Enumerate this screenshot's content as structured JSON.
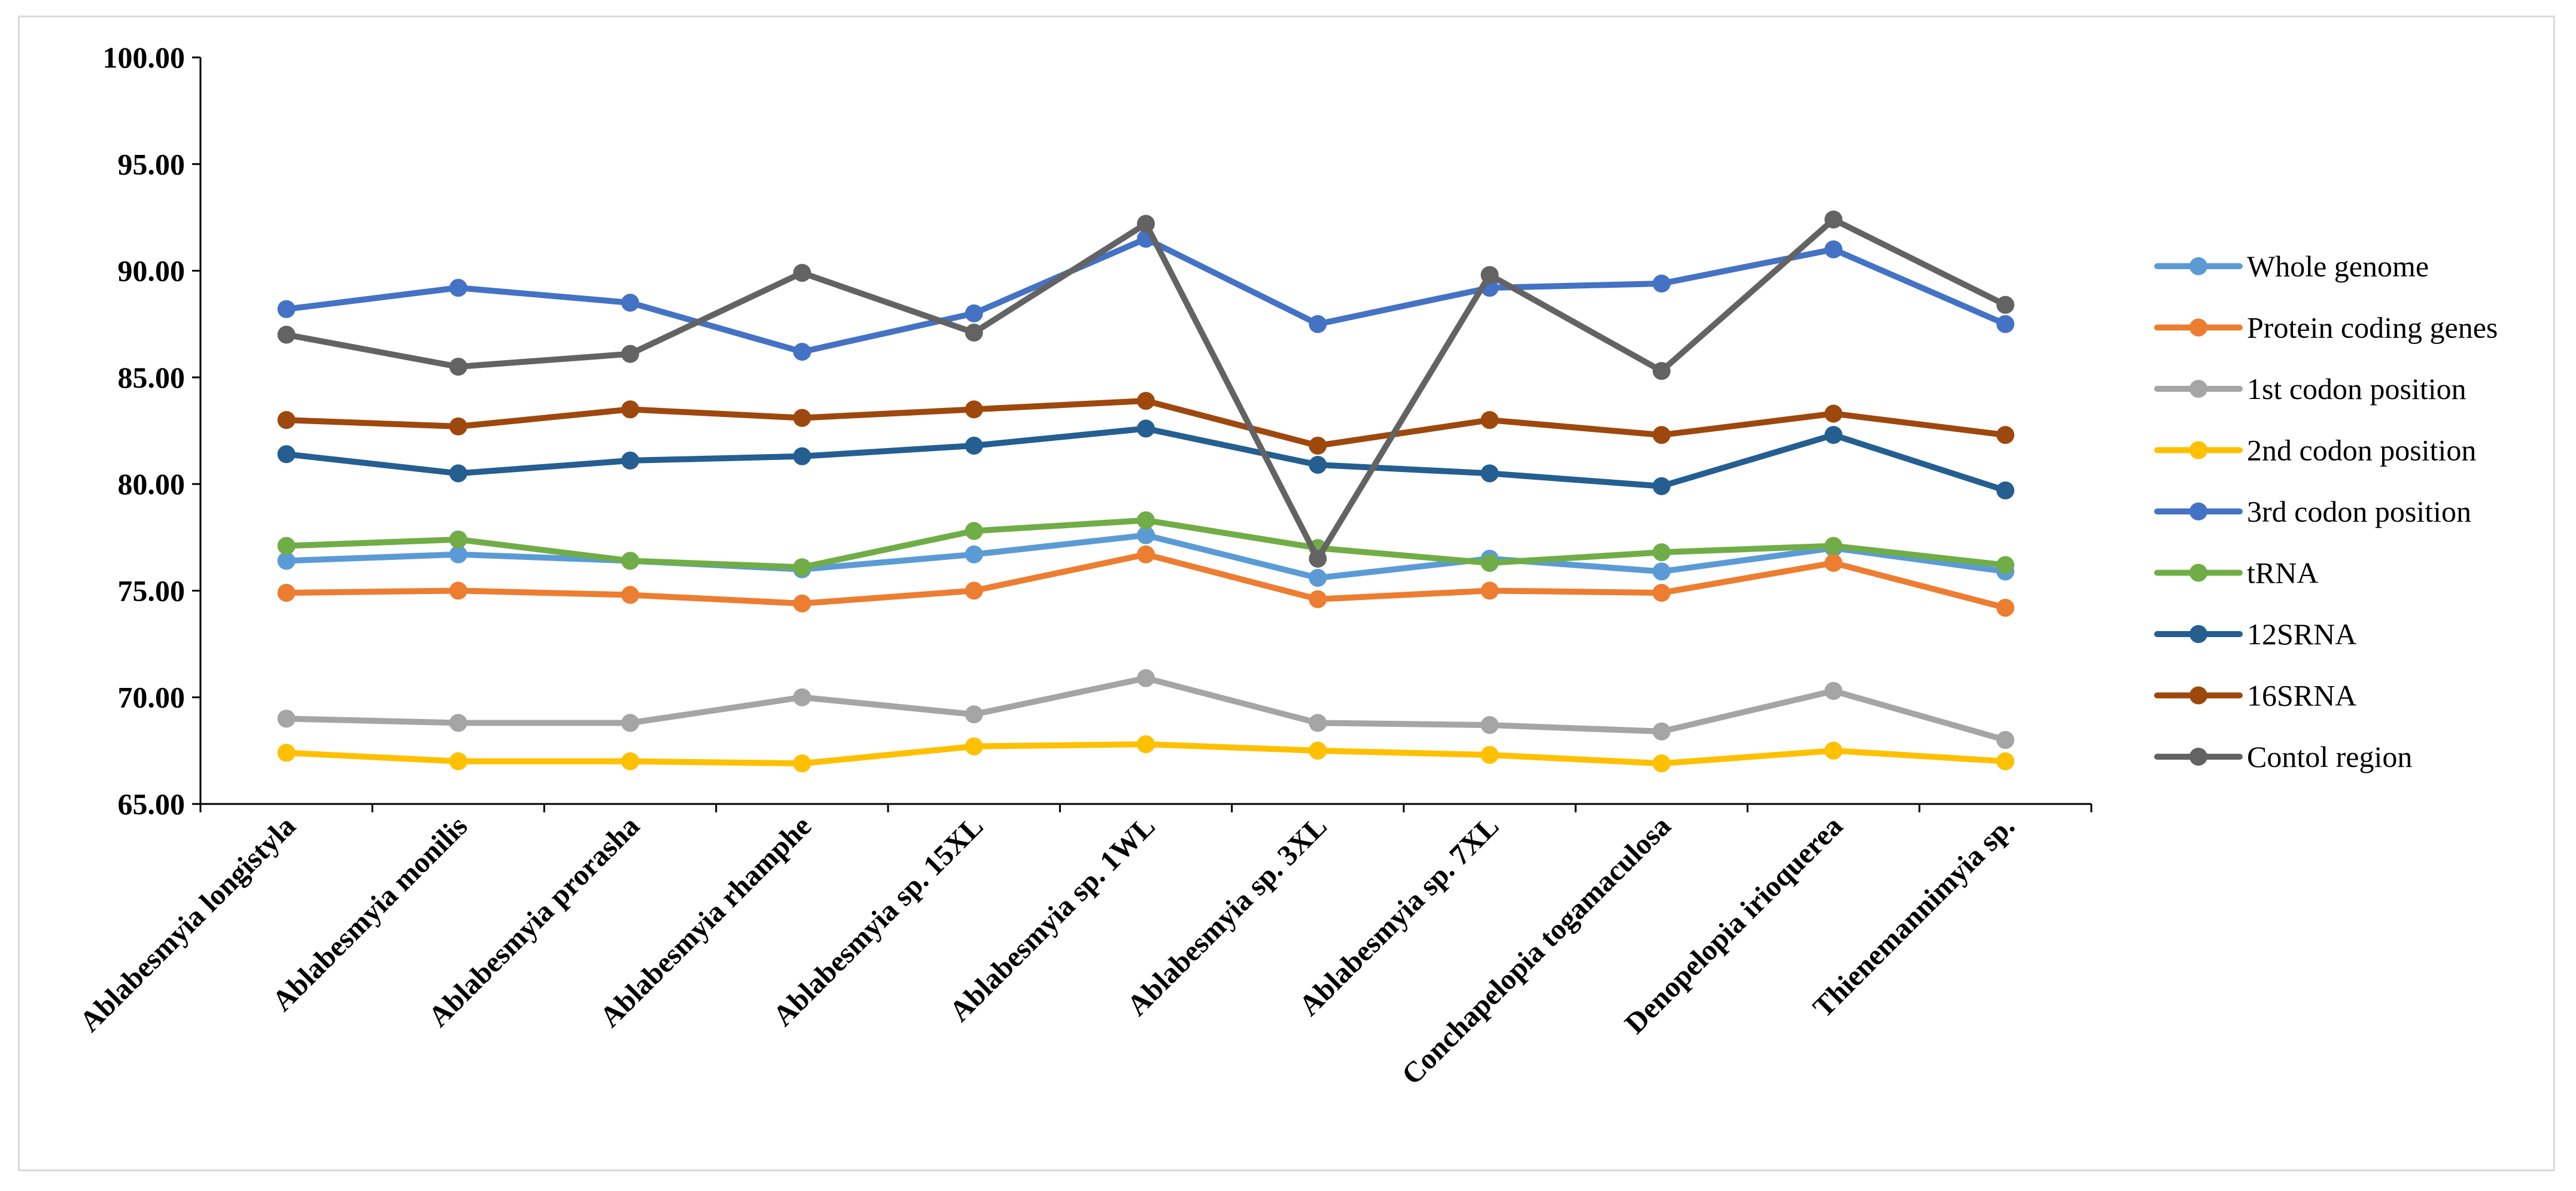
{
  "chart_data": {
    "type": "line",
    "title": "",
    "xlabel": "",
    "ylabel": "",
    "ylim": [
      65,
      100
    ],
    "yticks": [
      "65.00",
      "70.00",
      "75.00",
      "80.00",
      "85.00",
      "90.00",
      "95.00",
      "100.00"
    ],
    "legend_position": "right",
    "categories": [
      "Ablabesmyia longistyla",
      "Ablabesmyia monilis",
      "Ablabesmyia prorasha",
      "Ablabesmyia rhamphe",
      "Ablabesmyia sp. 15XL",
      "Ablabesmyia sp. 1WL",
      "Ablabesmyia sp. 3XL",
      "Ablabesmyia sp. 7XL",
      "Conchapelopia togamaculosa",
      "Denopelopia irioquerea",
      "Thienemannimyia sp."
    ],
    "series": [
      {
        "name": "Whole genome",
        "color": "#5b9bd5",
        "values": [
          76.4,
          76.7,
          76.4,
          76.0,
          76.7,
          77.6,
          75.6,
          76.5,
          75.9,
          77.0,
          75.9
        ]
      },
      {
        "name": "Protein coding genes",
        "color": "#ed7d31",
        "values": [
          74.9,
          75.0,
          74.8,
          74.4,
          75.0,
          76.7,
          74.6,
          75.0,
          74.9,
          76.3,
          74.2
        ]
      },
      {
        "name": "1st codon position",
        "color": "#a5a5a5",
        "values": [
          69.0,
          68.8,
          68.8,
          70.0,
          69.2,
          70.9,
          68.8,
          68.7,
          68.4,
          70.3,
          68.0
        ]
      },
      {
        "name": "2nd codon position",
        "color": "#ffc000",
        "values": [
          67.4,
          67.0,
          67.0,
          66.9,
          67.7,
          67.8,
          67.5,
          67.3,
          66.9,
          67.5,
          67.0
        ]
      },
      {
        "name": "3rd codon position",
        "color": "#4472c4",
        "values": [
          88.2,
          89.2,
          88.5,
          86.2,
          88.0,
          91.5,
          87.5,
          89.2,
          89.4,
          91.0,
          87.5
        ]
      },
      {
        "name": "tRNA",
        "color": "#70ad47",
        "values": [
          77.1,
          77.4,
          76.4,
          76.1,
          77.8,
          78.3,
          77.0,
          76.3,
          76.8,
          77.1,
          76.2
        ]
      },
      {
        "name": "12SRNA",
        "color": "#255e91",
        "values": [
          81.4,
          80.5,
          81.1,
          81.3,
          81.8,
          82.6,
          80.9,
          80.5,
          79.9,
          82.3,
          79.7
        ]
      },
      {
        "name": "16SRNA",
        "color": "#9e480e",
        "values": [
          83.0,
          82.7,
          83.5,
          83.1,
          83.5,
          83.9,
          81.8,
          83.0,
          82.3,
          83.3,
          82.3
        ]
      },
      {
        "name": "Contol region",
        "color": "#636363",
        "values": [
          87.0,
          85.5,
          86.1,
          89.9,
          87.1,
          92.2,
          76.5,
          89.8,
          85.3,
          92.4,
          88.4
        ]
      }
    ]
  }
}
